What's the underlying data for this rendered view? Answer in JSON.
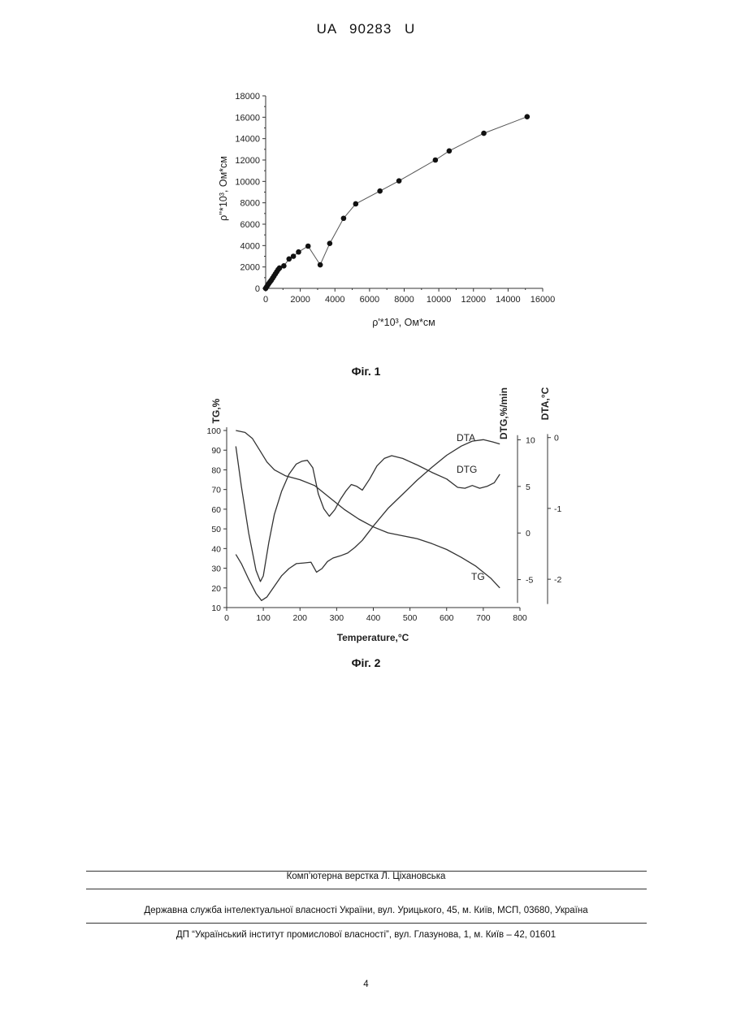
{
  "header": {
    "doc_number": "UA   90283   U"
  },
  "figures": [
    {
      "caption": "Фіг. 1"
    },
    {
      "caption": "Фіг. 2"
    }
  ],
  "footer": {
    "line1": "Комп’ютерна верстка Л. Ціхановська",
    "line2": "Державна служба інтелектуальної власності України, вул. Урицького, 45, м. Київ, МСП, 03680, Україна",
    "line3": "ДП “Український інститут промислової власності”, вул. Глазунова, 1, м. Київ – 42, 01601",
    "page_number": "4"
  },
  "chart_data": [
    {
      "type": "scatter",
      "title": "",
      "xlabel": "ρ'*10³, Ом*см",
      "ylabel": "ρ''*10³, Ом*см",
      "xlim": [
        0,
        16000
      ],
      "ylim": [
        0,
        18000
      ],
      "xticks": [
        "0",
        "2000",
        "4000",
        "6000",
        "8000",
        "10000",
        "12000",
        "14000",
        "16000"
      ],
      "yticks": [
        "0",
        "2000",
        "4000",
        "6000",
        "8000",
        "10000",
        "12000",
        "14000",
        "16000",
        "18000"
      ],
      "grid": false,
      "connected": true,
      "x": [
        0,
        60,
        120,
        180,
        250,
        320,
        400,
        480,
        560,
        640,
        720,
        800,
        1050,
        1350,
        1600,
        1900,
        2450,
        3150,
        3700,
        4500,
        5200,
        6600,
        7700,
        9800,
        10600,
        12600,
        15100
      ],
      "y": [
        0,
        150,
        300,
        450,
        600,
        750,
        950,
        1150,
        1350,
        1550,
        1750,
        1900,
        2100,
        2750,
        3000,
        3400,
        3950,
        2200,
        4200,
        6550,
        7900,
        9100,
        10050,
        12000,
        12850,
        14500,
        16050
      ]
    },
    {
      "type": "line",
      "title": "",
      "xlabel": "Temperature,°C",
      "xlim": [
        0,
        800
      ],
      "xticks": [
        "0",
        "100",
        "200",
        "300",
        "400",
        "500",
        "600",
        "700",
        "800"
      ],
      "axes": [
        {
          "label": "TG,%",
          "side": "left",
          "ylim": [
            10,
            100
          ],
          "ticks": [
            "10",
            "20",
            "30",
            "40",
            "50",
            "60",
            "70",
            "80",
            "90",
            "100"
          ]
        },
        {
          "label": "DTG,%/min",
          "side": "right",
          "ylim": [
            -8,
            11
          ],
          "ticks": [
            "-5",
            "0",
            "5",
            "10"
          ]
        },
        {
          "label": "DTA,°C",
          "side": "right",
          "ylim": [
            -2.4,
            0.1
          ],
          "ticks": [
            "-2",
            "-1",
            "0"
          ]
        }
      ],
      "series": [
        {
          "name": "TG",
          "axis": 0,
          "x": [
            25,
            50,
            70,
            90,
            110,
            130,
            160,
            200,
            240,
            280,
            320,
            360,
            400,
            440,
            480,
            520,
            560,
            600,
            640,
            680,
            720,
            745
          ],
          "y": [
            100,
            99,
            96,
            90,
            84,
            80,
            77,
            75,
            72,
            66,
            60,
            55,
            51,
            48,
            46.5,
            45,
            42.5,
            39.5,
            35.5,
            31,
            25,
            20
          ]
        },
        {
          "name": "DTG",
          "axis": 1,
          "x": [
            25,
            40,
            60,
            80,
            92,
            100,
            115,
            130,
            150,
            170,
            190,
            205,
            220,
            235,
            250,
            265,
            280,
            295,
            310,
            325,
            340,
            355,
            370,
            390,
            410,
            430,
            450,
            480,
            520,
            560,
            600,
            630,
            650,
            670,
            690,
            710,
            730,
            745
          ],
          "y": [
            9.3,
            5,
            0,
            -4,
            -5.2,
            -4.6,
            -1,
            2,
            4.5,
            6.3,
            7.4,
            7.7,
            7.8,
            7,
            4.2,
            2.6,
            1.8,
            2.5,
            3.6,
            4.5,
            5.2,
            5,
            4.6,
            5.8,
            7.2,
            8,
            8.3,
            8,
            7.3,
            6.5,
            5.8,
            4.9,
            4.8,
            5.1,
            4.8,
            5,
            5.4,
            6.3
          ]
        },
        {
          "name": "DTA",
          "axis": 2,
          "x": [
            25,
            40,
            60,
            80,
            95,
            110,
            130,
            150,
            170,
            190,
            210,
            230,
            245,
            260,
            275,
            290,
            310,
            330,
            350,
            370,
            400,
            440,
            480,
            520,
            560,
            600,
            640,
            670,
            700,
            725,
            745
          ],
          "y": [
            -1.65,
            -1.78,
            -2.0,
            -2.2,
            -2.3,
            -2.25,
            -2.1,
            -1.95,
            -1.85,
            -1.78,
            -1.77,
            -1.76,
            -1.9,
            -1.85,
            -1.75,
            -1.7,
            -1.67,
            -1.63,
            -1.55,
            -1.45,
            -1.25,
            -1.0,
            -0.8,
            -0.6,
            -0.42,
            -0.25,
            -0.12,
            -0.05,
            -0.03,
            -0.06,
            -0.09
          ]
        }
      ]
    }
  ]
}
